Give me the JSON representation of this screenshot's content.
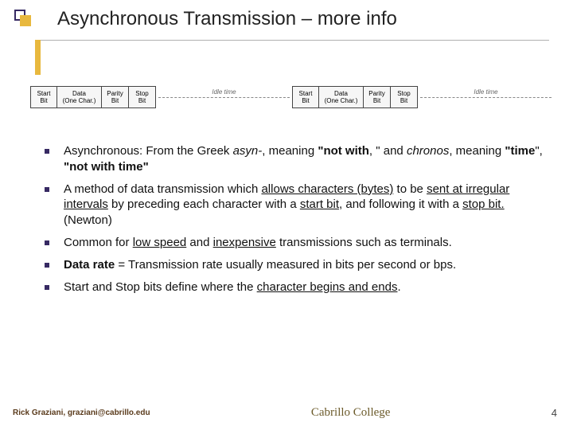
{
  "colors": {
    "accent_gold": "#e8b83e",
    "accent_purple": "#372a63",
    "bullet": "#372a63"
  },
  "title": "Asynchronous Transmission – more info",
  "diagram": {
    "frame": [
      {
        "l1": "Start",
        "l2": "Bit"
      },
      {
        "l1": "Data",
        "l2": "(One Char.)",
        "cls": "data"
      },
      {
        "l1": "Parity",
        "l2": "Bit"
      },
      {
        "l1": "Stop",
        "l2": "Bit"
      }
    ],
    "idle_label": "Idle time"
  },
  "bullets": [
    {
      "html": "Asynchronous:   From the Greek <span class=\"i\">asyn-</span>, meaning <span class=\"b\">\"not with</span>, \" and <span class=\"i\">chronos</span>, meaning <span class=\"b\">\"time</span>\",  <span class=\"b\">\"not with time\"</span>"
    },
    {
      "html": "A method of data transmission which <span class=\"u\">allows characters (bytes)</span> to be <span class=\"u\">sent at irregular intervals</span> by preceding each character with a <span class=\"u\">start bit</span>, and following it with a <span class=\"u\">stop bit.</span>  (Newton)"
    },
    {
      "html": "Common for <span class=\"u\">low speed</span> and <span class=\"u\">inexpensive</span> transmissions such as terminals."
    },
    {
      "html": "<span class=\"b\">Data rate</span> = Transmission rate usually measured in bits per second or bps."
    },
    {
      "html": "Start and Stop bits define where the <span class=\"u\">character begins and ends</span>."
    }
  ],
  "footer": {
    "left": "Rick Graziani, graziani@cabrillo.edu",
    "logo": "Cabrillo College",
    "page": "4"
  }
}
